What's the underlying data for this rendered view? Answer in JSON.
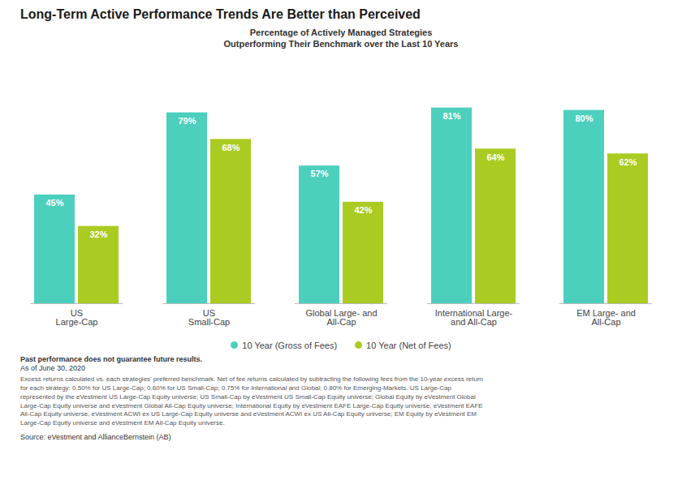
{
  "chart_data": {
    "type": "bar",
    "title": "Long-Term Active Performance Trends Are Better than Perceived",
    "subtitle": "Percentage of Actively Managed Strategies\nOutperforming Their Benchmark over the Last 10 Years",
    "categories": [
      "US\nLarge-Cap",
      "US\nSmall-Cap",
      "Global Large- and\nAll-Cap",
      "International Large-\nand All-Cap",
      "EM Large- and\nAll-Cap"
    ],
    "series": [
      {
        "name": "10 Year (Gross of Fees)",
        "color": "#4DCFBE",
        "values": [
          45,
          79,
          57,
          81,
          80
        ],
        "value_labels": [
          "45%",
          "79%",
          "57%",
          "81%",
          "80%"
        ]
      },
      {
        "name": "10 Year (Net of Fees)",
        "color": "#AACC22",
        "values": [
          32,
          68,
          42,
          64,
          62
        ],
        "value_labels": [
          "32%",
          "68%",
          "42%",
          "64%",
          "62%"
        ]
      }
    ],
    "ylim": [
      0,
      100
    ],
    "tick_labels": "x",
    "grid": false,
    "legend": "bottom",
    "data_labels": true,
    "annotations": [
      "Past performance does not guarantee future results.",
      "As of June 30, 2020",
      "Excess returns calculated vs. each strategies' preferred benchmark. Net of fee returns calculated by subtracting the following fees from the 10-year excess return\nfor each strategy: 0.50% for US Large-Cap; 0.60% for US Small-Cap; 0.75% for International and Global; 0.80% for Emerging-Markets. US Large-Cap\nrepresented by the eVestment US Large-Cap Equity universe; US Small-Cap by eVestment US Small-Cap Equity universe; Global Equity by eVestment Global\nLarge-Cap Equity universe and eVestment Global All-Cap Equity universe; International Equity by eVestment EAFE Large-Cap Equity universe, eVestment EAFE\nAll-Cap Equity universe, eVestment ACWI ex US Large-Cap Equity universe and eVestment ACWI ex US All-Cap Equity universe; EM Equity by eVestment EM\nLarge-Cap Equity universe and eVestment EM All-Cap Equity universe.",
      "Source: eVestment and AllianceBernstein (AB)"
    ]
  }
}
